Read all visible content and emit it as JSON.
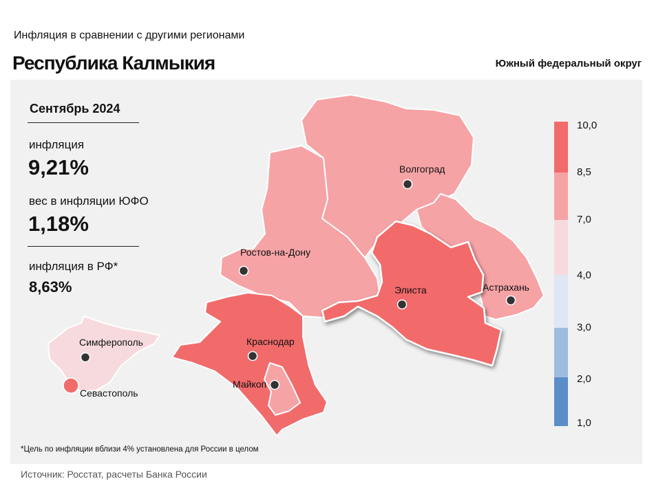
{
  "header": {
    "subtitle": "Инфляция в сравнении с другими регионами",
    "title": "Республика Калмыкия",
    "district": "Южный федеральный округ"
  },
  "stats": {
    "period": "Сентябрь 2024",
    "inflation_label": "инфляция",
    "inflation_value": "9,21%",
    "weight_label": "вес в инфляции ЮФО",
    "weight_value": "1,18%",
    "rf_label": "инфляция в РФ*",
    "rf_value": "8,63%"
  },
  "footnote": "*Цель по инфляции вблизи 4% установлена для России в целом",
  "source": "Источник: Росстат, расчеты Банка России",
  "legend": {
    "ticks": [
      "10,0",
      "8,5",
      "7,0",
      "4,0",
      "3,0",
      "2,0",
      "1,0"
    ],
    "colors": [
      "#f26b6b",
      "#f6a3a6",
      "#f7dadd",
      "#dfe6f4",
      "#9dbde0",
      "#5b8ec9"
    ]
  },
  "map": {
    "colors": {
      "high": "#f26b6b",
      "mid": "#f6a3a6",
      "low": "#f7dadd"
    },
    "highlighted_region": "Республика Калмыкия",
    "cities": [
      "Волгоград",
      "Ростов-на-Дону",
      "Элиста",
      "Астрахань",
      "Краснодар",
      "Майкоп",
      "Симферополь",
      "Севастополь"
    ]
  }
}
